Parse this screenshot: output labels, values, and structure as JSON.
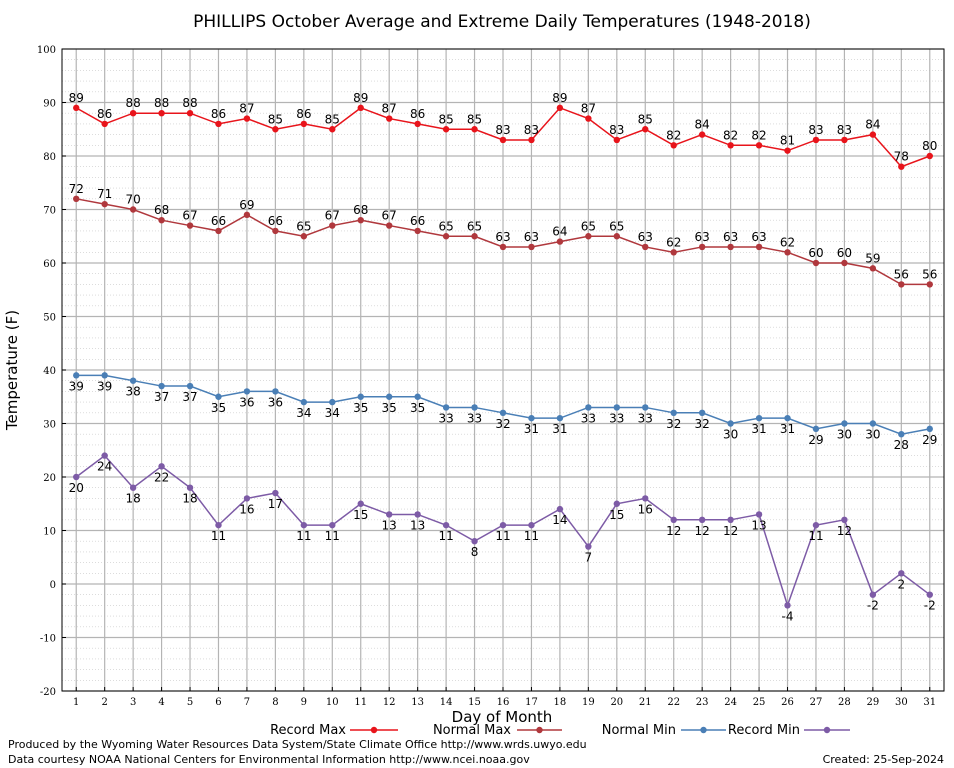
{
  "chart_data": {
    "type": "line",
    "title": "PHILLIPS October Average and Extreme Daily Temperatures (1948-2018)",
    "xlabel": "Day of Month",
    "ylabel": "Temperature (F)",
    "ylim": [
      -20,
      100
    ],
    "yticks": [
      -20,
      -10,
      0,
      10,
      20,
      30,
      40,
      50,
      60,
      70,
      80,
      90,
      100
    ],
    "x": [
      1,
      2,
      3,
      4,
      5,
      6,
      7,
      8,
      9,
      10,
      11,
      12,
      13,
      14,
      15,
      16,
      17,
      18,
      19,
      20,
      21,
      22,
      23,
      24,
      25,
      26,
      27,
      28,
      29,
      30,
      31
    ],
    "grid": true,
    "legend_position": "bottom",
    "series": [
      {
        "name": "Record Max",
        "color": "#e8141b",
        "label_pos": "above",
        "values": [
          89,
          86,
          88,
          88,
          88,
          86,
          87,
          85,
          86,
          85,
          89,
          87,
          86,
          85,
          85,
          83,
          83,
          89,
          87,
          83,
          85,
          82,
          84,
          82,
          82,
          81,
          83,
          83,
          84,
          78,
          80
        ]
      },
      {
        "name": "Normal Max",
        "color": "#b0383d",
        "label_pos": "above",
        "values": [
          72,
          71,
          70,
          68,
          67,
          66,
          69,
          66,
          65,
          67,
          68,
          67,
          66,
          65,
          65,
          63,
          63,
          64,
          65,
          65,
          63,
          62,
          63,
          63,
          63,
          62,
          60,
          60,
          59,
          56,
          56
        ]
      },
      {
        "name": "Normal Min",
        "color": "#4a7fb6",
        "label_pos": "below",
        "values": [
          39,
          39,
          38,
          37,
          37,
          35,
          36,
          36,
          34,
          34,
          35,
          35,
          35,
          33,
          33,
          32,
          31,
          31,
          33,
          33,
          33,
          32,
          32,
          30,
          31,
          31,
          29,
          30,
          30,
          28,
          29
        ]
      },
      {
        "name": "Record Min",
        "color": "#7d5ba6",
        "label_pos": "below",
        "values": [
          20,
          24,
          18,
          22,
          18,
          11,
          16,
          17,
          11,
          11,
          15,
          13,
          13,
          11,
          8,
          11,
          11,
          14,
          7,
          15,
          16,
          12,
          12,
          12,
          13,
          -4,
          11,
          12,
          -2,
          2,
          -2
        ]
      }
    ]
  },
  "footer": {
    "produced_by": "Produced by the Wyoming Water Resources Data System/State Climate Office http://www.wrds.uwyo.edu",
    "data_courtesy": "Data courtesy NOAA National Centers for Environmental Information http://www.ncei.noaa.gov",
    "created": "Created:  25-Sep-2024"
  }
}
